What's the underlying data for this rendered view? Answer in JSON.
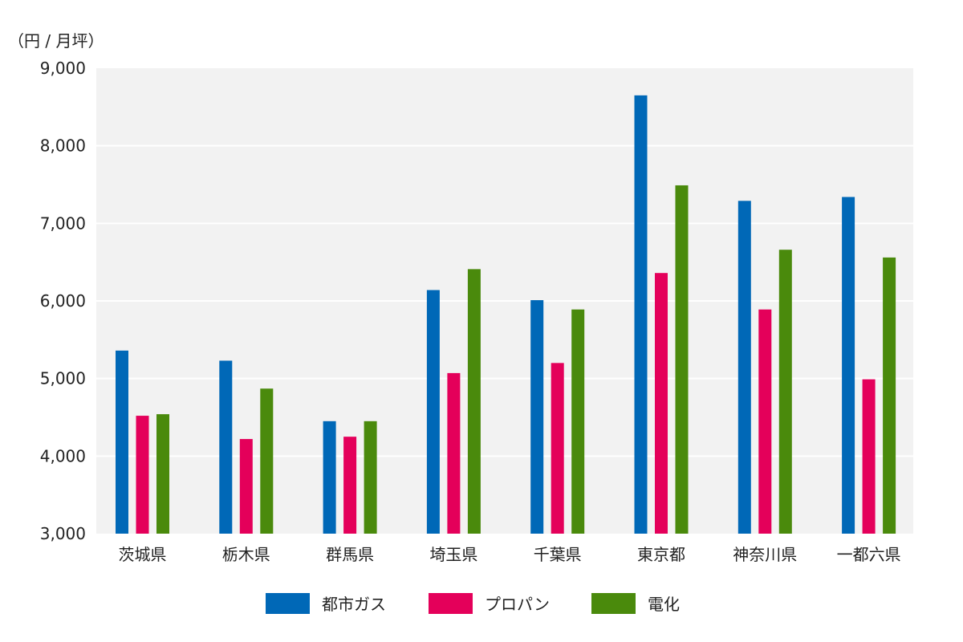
{
  "chart_data": {
    "type": "bar",
    "ylabel": "（円 / 月坪）",
    "ylim": [
      3000,
      9000
    ],
    "yticks": [
      3000,
      4000,
      5000,
      6000,
      7000,
      8000,
      9000
    ],
    "ytick_labels": [
      "3,000",
      "4,000",
      "5,000",
      "6,000",
      "7,000",
      "8,000",
      "9,000"
    ],
    "grid": true,
    "legend_position": "bottom",
    "categories": [
      "茨城県",
      "栃木県",
      "群馬県",
      "埼玉県",
      "千葉県",
      "東京都",
      "神奈川県",
      "一都六県"
    ],
    "series": [
      {
        "name": "都市ガス",
        "color": "#0068b7",
        "values": [
          5360,
          5230,
          4450,
          6140,
          6010,
          8650,
          7290,
          7340
        ]
      },
      {
        "name": "プロパン",
        "color": "#e4005a",
        "values": [
          4520,
          4220,
          4250,
          5070,
          5200,
          6360,
          5890,
          4990
        ]
      },
      {
        "name": "電化",
        "color": "#4a8a0c",
        "values": [
          4540,
          4870,
          4450,
          6410,
          5890,
          7490,
          6660,
          6560
        ]
      }
    ],
    "colors": {
      "plot_background": "#f2f2f2",
      "gridline": "#ffffff"
    }
  }
}
